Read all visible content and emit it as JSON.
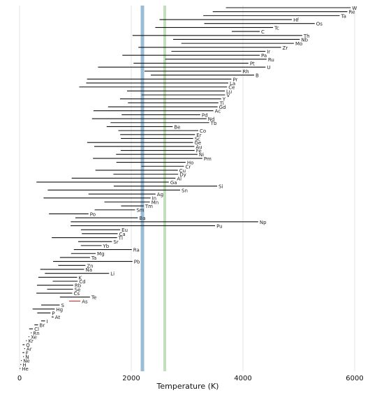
{
  "chart_data": {
    "type": "range",
    "xlabel": "Temperature (K)",
    "xlim": [
      0,
      6000
    ],
    "x_ticks": [
      0,
      2000,
      4000,
      6000
    ],
    "tick_labels": [
      "0",
      "2000",
      "4000",
      "6000"
    ],
    "grid": "vertical",
    "reference_lines": [
      {
        "x": 2200,
        "color": "#8fb5d1"
      },
      {
        "x": 2600,
        "color": "#bcdcb5"
      }
    ],
    "series_color": "#111111",
    "special_color": "#cc3333",
    "elements": [
      {
        "name": "W",
        "min": 3695,
        "max": 5930
      },
      {
        "name": "Re",
        "min": 3459,
        "max": 5869
      },
      {
        "name": "Ta",
        "min": 3290,
        "max": 5731
      },
      {
        "name": "Hf",
        "min": 2506,
        "max": 4876
      },
      {
        "name": "Os",
        "min": 3306,
        "max": 5285
      },
      {
        "name": "Tc",
        "min": 2430,
        "max": 4538
      },
      {
        "name": "C",
        "min": 3800,
        "max": 4300
      },
      {
        "name": "Th",
        "min": 2023,
        "max": 5061
      },
      {
        "name": "Nb",
        "min": 2750,
        "max": 5017
      },
      {
        "name": "Mo",
        "min": 2896,
        "max": 4912
      },
      {
        "name": "Zr",
        "min": 2128,
        "max": 4682
      },
      {
        "name": "Ir",
        "min": 2719,
        "max": 4403
      },
      {
        "name": "Pa",
        "min": 1841,
        "max": 4300
      },
      {
        "name": "Ru",
        "min": 2607,
        "max": 4423
      },
      {
        "name": "Pt",
        "min": 2041,
        "max": 4098
      },
      {
        "name": "U",
        "min": 1405,
        "max": 4404
      },
      {
        "name": "Rh",
        "min": 2237,
        "max": 3968
      },
      {
        "name": "B",
        "min": 2349,
        "max": 4200
      },
      {
        "name": "Pr",
        "min": 1208,
        "max": 3793
      },
      {
        "name": "La",
        "min": 1193,
        "max": 3737
      },
      {
        "name": "Ce",
        "min": 1068,
        "max": 3716
      },
      {
        "name": "Lu",
        "min": 1925,
        "max": 3675
      },
      {
        "name": "V",
        "min": 2183,
        "max": 3680
      },
      {
        "name": "Y",
        "min": 1799,
        "max": 3609
      },
      {
        "name": "Ti",
        "min": 1941,
        "max": 3560
      },
      {
        "name": "Gd",
        "min": 1585,
        "max": 3546
      },
      {
        "name": "Ac",
        "min": 1323,
        "max": 3471
      },
      {
        "name": "Pd",
        "min": 1828,
        "max": 3236
      },
      {
        "name": "Nd",
        "min": 1297,
        "max": 3347
      },
      {
        "name": "Tb",
        "min": 1629,
        "max": 3396
      },
      {
        "name": "Be",
        "min": 1560,
        "max": 2742
      },
      {
        "name": "Co",
        "min": 1768,
        "max": 3200
      },
      {
        "name": "Er",
        "min": 1802,
        "max": 3141
      },
      {
        "name": "Sc",
        "min": 1814,
        "max": 3109
      },
      {
        "name": "Ge",
        "min": 1211,
        "max": 3106
      },
      {
        "name": "Au",
        "min": 1337,
        "max": 3129
      },
      {
        "name": "Fe",
        "min": 1811,
        "max": 3134
      },
      {
        "name": "Ni",
        "min": 1728,
        "max": 3186
      },
      {
        "name": "Pm",
        "min": 1315,
        "max": 3273
      },
      {
        "name": "Ho",
        "min": 1734,
        "max": 2973
      },
      {
        "name": "Cr",
        "min": 2180,
        "max": 2944
      },
      {
        "name": "Cu",
        "min": 1358,
        "max": 2835
      },
      {
        "name": "Dy",
        "min": 1680,
        "max": 2840
      },
      {
        "name": "Al",
        "min": 933,
        "max": 2792
      },
      {
        "name": "Ga",
        "min": 303,
        "max": 2673
      },
      {
        "name": "Si",
        "min": 1687,
        "max": 3538
      },
      {
        "name": "Sn",
        "min": 505,
        "max": 2875
      },
      {
        "name": "Ag",
        "min": 1235,
        "max": 2435
      },
      {
        "name": "In",
        "min": 430,
        "max": 2345
      },
      {
        "name": "Mn",
        "min": 1519,
        "max": 2334
      },
      {
        "name": "Tm",
        "min": 1818,
        "max": 2223
      },
      {
        "name": "Sm",
        "min": 1345,
        "max": 2067
      },
      {
        "name": "Po",
        "min": 527,
        "max": 1235
      },
      {
        "name": "Ba",
        "min": 1000,
        "max": 2118
      },
      {
        "name": "Np",
        "min": 917,
        "max": 4273
      },
      {
        "name": "Pu",
        "min": 913,
        "max": 3501
      },
      {
        "name": "Eu",
        "min": 1099,
        "max": 1802
      },
      {
        "name": "Ca",
        "min": 1115,
        "max": 1757
      },
      {
        "name": "Tl",
        "min": 577,
        "max": 1746
      },
      {
        "name": "Sr",
        "min": 1050,
        "max": 1655
      },
      {
        "name": "Yb",
        "min": 1097,
        "max": 1469
      },
      {
        "name": "Ra",
        "min": 973,
        "max": 2010
      },
      {
        "name": "Mg",
        "min": 923,
        "max": 1363
      },
      {
        "name": "Ta2",
        "min": 723,
        "max": 1261
      },
      {
        "name": "Pb",
        "min": 601,
        "max": 2022
      },
      {
        "name": "Zn",
        "min": 693,
        "max": 1180
      },
      {
        "name": "Na",
        "min": 371,
        "max": 1156
      },
      {
        "name": "Li",
        "min": 454,
        "max": 1603
      },
      {
        "name": "K",
        "min": 337,
        "max": 1032
      },
      {
        "name": "Cd",
        "min": 594,
        "max": 1040
      },
      {
        "name": "Rb",
        "min": 312,
        "max": 961
      },
      {
        "name": "Se",
        "min": 494,
        "max": 958
      },
      {
        "name": "Cs",
        "min": 302,
        "max": 944
      },
      {
        "name": "Te",
        "min": 723,
        "max": 1261
      },
      {
        "name": "As",
        "min": 887,
        "max": 1090
      },
      {
        "name": "S",
        "min": 388,
        "max": 718
      },
      {
        "name": "Hg",
        "min": 234,
        "max": 630
      },
      {
        "name": "P",
        "min": 317,
        "max": 554
      },
      {
        "name": "At",
        "min": 575,
        "max": 610
      },
      {
        "name": "I",
        "min": 387,
        "max": 457
      },
      {
        "name": "Br",
        "min": 266,
        "max": 332
      },
      {
        "name": "Cl",
        "min": 172,
        "max": 239
      },
      {
        "name": "Rn",
        "min": 202,
        "max": 211
      },
      {
        "name": "Xe",
        "min": 161,
        "max": 165
      },
      {
        "name": "Kr",
        "min": 116,
        "max": 120
      },
      {
        "name": "O",
        "min": 54,
        "max": 90
      },
      {
        "name": "Ar",
        "min": 84,
        "max": 87
      },
      {
        "name": "F",
        "min": 53,
        "max": 85
      },
      {
        "name": "N",
        "min": 63,
        "max": 77
      },
      {
        "name": "Ne",
        "min": 25,
        "max": 27
      },
      {
        "name": "H",
        "min": 14,
        "max": 20
      },
      {
        "name": "He",
        "min": 1,
        "max": 4
      }
    ],
    "display_names": {
      "Ta2": "Ta"
    },
    "special_elements": [
      "As"
    ]
  }
}
